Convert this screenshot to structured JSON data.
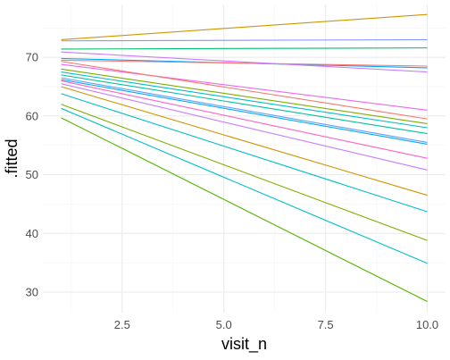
{
  "chart_data": {
    "type": "line",
    "xlabel": "visit_n",
    "ylabel": ".fitted",
    "xlim": [
      0.55,
      10.45
    ],
    "ylim": [
      26.5,
      79.0
    ],
    "x_ticks": [
      2.5,
      5.0,
      7.5,
      10.0
    ],
    "x_tick_labels": [
      "2.5",
      "5.0",
      "7.5",
      "10.0"
    ],
    "y_ticks": [
      30,
      40,
      50,
      60,
      70
    ],
    "y_tick_labels": [
      "30",
      "40",
      "50",
      "60",
      "70"
    ],
    "grid": true,
    "legend": "none",
    "background": "#ffffff",
    "grid_major_color": "#ebebeb",
    "grid_minor_color": "#f5f5f5",
    "series": [
      {
        "color": "#cd9600",
        "values": [
          [
            1,
            73.0
          ],
          [
            10,
            77.3
          ]
        ]
      },
      {
        "color": "#8494ff",
        "values": [
          [
            1,
            72.8
          ],
          [
            10,
            73.0
          ]
        ]
      },
      {
        "color": "#00be67",
        "values": [
          [
            1,
            71.4
          ],
          [
            10,
            71.6
          ]
        ]
      },
      {
        "color": "#00a9ff",
        "values": [
          [
            1,
            69.8
          ],
          [
            10,
            68.2
          ]
        ]
      },
      {
        "color": "#f8766d",
        "values": [
          [
            1,
            69.5
          ],
          [
            10,
            68.5
          ]
        ]
      },
      {
        "color": "#c77cff",
        "values": [
          [
            1,
            70.9
          ],
          [
            10,
            67.5
          ]
        ]
      },
      {
        "color": "#ed68ed",
        "values": [
          [
            1,
            68.8
          ],
          [
            10,
            61.0
          ]
        ]
      },
      {
        "color": "#f8766d",
        "values": [
          [
            1,
            69.3
          ],
          [
            10,
            59.5
          ]
        ]
      },
      {
        "color": "#7cae00",
        "values": [
          [
            1,
            68.0
          ],
          [
            10,
            58.7
          ]
        ]
      },
      {
        "color": "#00bfc4",
        "values": [
          [
            1,
            67.5
          ],
          [
            10,
            58.0
          ]
        ]
      },
      {
        "color": "#00c19a",
        "values": [
          [
            1,
            67.0
          ],
          [
            10,
            57.0
          ]
        ]
      },
      {
        "color": "#619cff",
        "values": [
          [
            1,
            66.5
          ],
          [
            10,
            55.5
          ]
        ]
      },
      {
        "color": "#00a9ff",
        "values": [
          [
            1,
            66.2
          ],
          [
            10,
            55.2
          ]
        ]
      },
      {
        "color": "#ff61c3",
        "values": [
          [
            1,
            66.0
          ],
          [
            10,
            52.8
          ]
        ]
      },
      {
        "color": "#c77cff",
        "values": [
          [
            1,
            65.5
          ],
          [
            10,
            50.8
          ]
        ]
      },
      {
        "color": "#cd9600",
        "values": [
          [
            1,
            65.0
          ],
          [
            10,
            46.5
          ]
        ]
      },
      {
        "color": "#00bfc4",
        "values": [
          [
            1,
            63.8
          ],
          [
            10,
            43.7
          ]
        ]
      },
      {
        "color": "#7cae00",
        "values": [
          [
            1,
            62.0
          ],
          [
            10,
            38.8
          ]
        ]
      },
      {
        "color": "#00bfc4",
        "values": [
          [
            1,
            61.3
          ],
          [
            10,
            34.9
          ]
        ]
      },
      {
        "color": "#53b400",
        "values": [
          [
            1,
            59.7
          ],
          [
            10,
            28.4
          ]
        ]
      }
    ]
  }
}
